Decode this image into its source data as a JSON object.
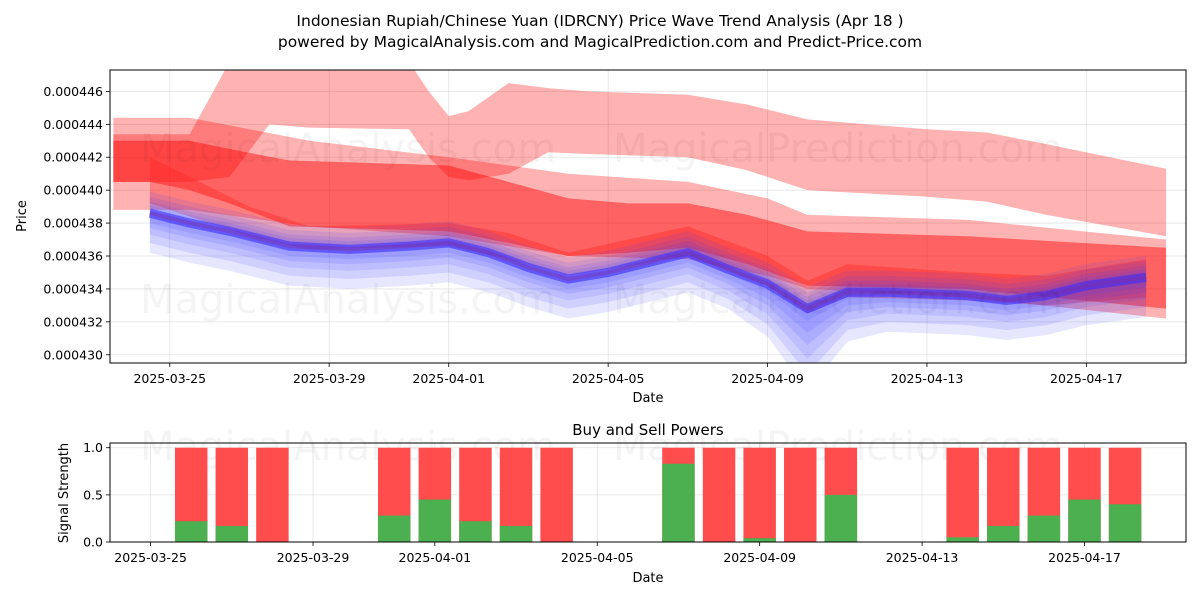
{
  "page": {
    "title_line1": "Indonesian Rupiah/Chinese Yuan (IDRCNY) Price Wave Trend Analysis (Apr 18 )",
    "title_line2": "powered by MagicalAnalysis.com and MagicalPrediction.com and Predict-Price.com",
    "watermarks": [
      "MagicalAnalysis.com",
      "MagicalPrediction.com"
    ]
  },
  "chart_data": [
    {
      "type": "area",
      "title": "",
      "xlabel": "Date",
      "ylabel": "Price",
      "xlim": [
        "2025-03-23 12:00",
        "2025-04-19 12:00"
      ],
      "ylim": [
        0.0004295,
        0.0004473
      ],
      "grid": true,
      "x_ticks": [
        "2025-03-25",
        "2025-03-29",
        "2025-04-01",
        "2025-04-05",
        "2025-04-09",
        "2025-04-13",
        "2025-04-17"
      ],
      "y_ticks": [
        "0.000430",
        "0.000432",
        "0.000434",
        "0.000436",
        "0.000438",
        "0.000440",
        "0.000442",
        "0.000444",
        "0.000446"
      ],
      "red_bands": [
        {
          "color": "#ff0000",
          "opacity": 0.3,
          "x": [
            "2025-03-23 14:00",
            "2025-03-25 12:00",
            "2025-03-26 12:00",
            "2025-03-27 12:00",
            "2025-03-28 12:00",
            "2025-03-31 00:00",
            "2025-03-31 12:00",
            "2025-04-01 00:00",
            "2025-04-01 12:00",
            "2025-04-02 12:00",
            "2025-04-03 12:00",
            "2025-04-04 12:00",
            "2025-04-07 00:00",
            "2025-04-08 12:00",
            "2025-04-10 00:00",
            "2025-04-13 00:00",
            "2025-04-14 12:00",
            "2025-04-16 00:00",
            "2025-04-19 00:00"
          ],
          "upper": [
            0.0004434,
            0.0004434,
            0.0004478,
            0.0004478,
            0.0004478,
            0.0004478,
            0.000446,
            0.0004445,
            0.0004448,
            0.0004465,
            0.0004462,
            0.000446,
            0.0004458,
            0.0004452,
            0.0004443,
            0.0004437,
            0.0004435,
            0.0004428,
            0.0004413
          ],
          "lower": [
            0.0004405,
            0.0004405,
            0.0004408,
            0.000444,
            0.0004438,
            0.0004437,
            0.000442,
            0.0004408,
            0.0004406,
            0.000441,
            0.0004423,
            0.0004422,
            0.000442,
            0.0004412,
            0.00044,
            0.0004396,
            0.0004393,
            0.0004385,
            0.0004372
          ]
        },
        {
          "color": "#ff0000",
          "opacity": 0.3,
          "x": [
            "2025-03-23 14:00",
            "2025-03-25 12:00",
            "2025-03-28 12:00",
            "2025-04-01 00:00",
            "2025-04-04 00:00",
            "2025-04-07 00:00",
            "2025-04-09 00:00",
            "2025-04-10 00:00",
            "2025-04-14 00:00",
            "2025-04-19 00:00"
          ],
          "upper": [
            0.0004444,
            0.0004444,
            0.000443,
            0.000442,
            0.000441,
            0.0004405,
            0.0004395,
            0.0004385,
            0.0004382,
            0.000437
          ],
          "lower": [
            0.0004388,
            0.0004388,
            0.0004378,
            0.0004372,
            0.000436,
            0.0004358,
            0.0004348,
            0.000434,
            0.0004335,
            0.0004322
          ]
        },
        {
          "color": "#ff0000",
          "opacity": 0.45,
          "x": [
            "2025-03-23 14:00",
            "2025-03-24 12:00",
            "2025-03-25 12:00",
            "2025-03-26 12:00",
            "2025-03-28 00:00",
            "2025-04-01 00:00",
            "2025-04-02 12:00",
            "2025-04-04 00:00",
            "2025-04-05 12:00",
            "2025-04-07 00:00",
            "2025-04-08 12:00",
            "2025-04-10 00:00",
            "2025-04-14 00:00",
            "2025-04-19 00:00"
          ],
          "upper": [
            0.000443,
            0.000443,
            0.000443,
            0.0004425,
            0.0004418,
            0.0004415,
            0.0004405,
            0.0004395,
            0.0004392,
            0.0004392,
            0.0004385,
            0.0004375,
            0.0004372,
            0.0004365
          ],
          "lower": [
            0.0004405,
            0.0004405,
            0.00044,
            0.0004392,
            0.0004378,
            0.0004375,
            0.0004368,
            0.000436,
            0.0004362,
            0.0004365,
            0.0004355,
            0.0004342,
            0.000434,
            0.0004328
          ]
        },
        {
          "color": "#ff2020",
          "opacity": 0.35,
          "x": [
            "2025-03-24 12:00",
            "2025-03-25 12:00",
            "2025-03-27 00:00",
            "2025-03-28 12:00",
            "2025-04-01 00:00",
            "2025-04-02 12:00",
            "2025-04-04 00:00",
            "2025-04-07 00:00",
            "2025-04-09 00:00",
            "2025-04-10 00:00",
            "2025-04-11 00:00",
            "2025-04-14 00:00",
            "2025-04-16 00:00",
            "2025-04-18 12:00"
          ],
          "upper": [
            0.000442,
            0.0004408,
            0.000439,
            0.0004378,
            0.000438,
            0.0004374,
            0.0004362,
            0.0004378,
            0.000436,
            0.0004345,
            0.0004355,
            0.000435,
            0.0004348,
            0.0004358
          ],
          "lower": [
            0.0004392,
            0.0004384,
            0.0004372,
            0.0004364,
            0.0004366,
            0.0004358,
            0.0004348,
            0.000436,
            0.0004342,
            0.0004325,
            0.0004335,
            0.0004333,
            0.000433,
            0.0004335
          ]
        }
      ],
      "blue_center": {
        "x": [
          "2025-03-24 12:00",
          "2025-03-25 12:00",
          "2025-03-26 12:00",
          "2025-03-28 00:00",
          "2025-03-29 12:00",
          "2025-03-31 00:00",
          "2025-04-01 00:00",
          "2025-04-02 00:00",
          "2025-04-03 00:00",
          "2025-04-04 00:00",
          "2025-04-05 00:00",
          "2025-04-06 00:00",
          "2025-04-07 00:00",
          "2025-04-08 00:00",
          "2025-04-09 00:00",
          "2025-04-10 00:00",
          "2025-04-11 00:00",
          "2025-04-12 00:00",
          "2025-04-13 00:00",
          "2025-04-14 00:00",
          "2025-04-15 00:00",
          "2025-04-16 00:00",
          "2025-04-17 00:00",
          "2025-04-18 12:00"
        ],
        "y": [
          0.0004386,
          0.000438,
          0.0004375,
          0.0004366,
          0.0004364,
          0.0004366,
          0.0004368,
          0.0004362,
          0.0004353,
          0.0004346,
          0.000435,
          0.0004356,
          0.0004362,
          0.0004352,
          0.0004343,
          0.0004328,
          0.0004338,
          0.0004338,
          0.0004337,
          0.0004336,
          0.0004333,
          0.0004336,
          0.0004342,
          0.0004347
        ]
      }
    },
    {
      "type": "bar",
      "title": "Buy and Sell Powers",
      "xlabel": "Date",
      "ylabel": "Signal Strength",
      "xlim": [
        "2025-03-24 00:00",
        "2025-04-19 12:00"
      ],
      "ylim": [
        0,
        1.05
      ],
      "grid": true,
      "x_ticks": [
        "2025-03-25",
        "2025-03-29",
        "2025-04-01",
        "2025-04-05",
        "2025-04-09",
        "2025-04-13",
        "2025-04-17"
      ],
      "y_ticks": [
        "0.0",
        "0.5",
        "1.0"
      ],
      "colors": {
        "buy": "#4caf50",
        "sell": "#ff4c4c"
      },
      "bars": [
        {
          "date": "2025-03-26",
          "buy": 0.22
        },
        {
          "date": "2025-03-27",
          "buy": 0.17
        },
        {
          "date": "2025-03-28",
          "buy": 0.0
        },
        {
          "date": "2025-03-31",
          "buy": 0.28
        },
        {
          "date": "2025-04-01",
          "buy": 0.45
        },
        {
          "date": "2025-04-02",
          "buy": 0.22
        },
        {
          "date": "2025-04-03",
          "buy": 0.17
        },
        {
          "date": "2025-04-04",
          "buy": 0.0
        },
        {
          "date": "2025-04-07",
          "buy": 0.83
        },
        {
          "date": "2025-04-08",
          "buy": 0.0
        },
        {
          "date": "2025-04-09",
          "buy": 0.04
        },
        {
          "date": "2025-04-10",
          "buy": 0.0
        },
        {
          "date": "2025-04-11",
          "buy": 0.5
        },
        {
          "date": "2025-04-14",
          "buy": 0.05
        },
        {
          "date": "2025-04-15",
          "buy": 0.17
        },
        {
          "date": "2025-04-16",
          "buy": 0.28
        },
        {
          "date": "2025-04-17",
          "buy": 0.45
        },
        {
          "date": "2025-04-18",
          "buy": 0.4
        }
      ]
    }
  ]
}
